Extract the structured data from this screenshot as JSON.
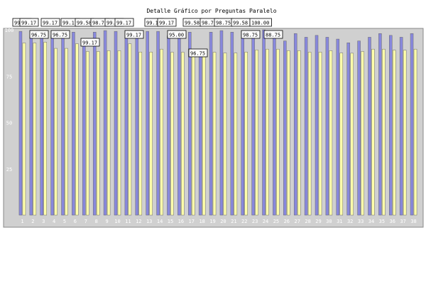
{
  "chart_data": {
    "type": "bar",
    "title": "Detalle Gráfico por Preguntas Paralelo",
    "xlabel": "",
    "ylabel": "",
    "ylim": [
      0,
      100
    ],
    "yticks": [
      25,
      50,
      75,
      100
    ],
    "grid": false,
    "categories": [
      "1",
      "2",
      "3",
      "4",
      "5",
      "6",
      "7",
      "8",
      "9",
      "10",
      "11",
      "12",
      "13",
      "14",
      "15",
      "16",
      "17",
      "18",
      "19",
      "20",
      "21",
      "22",
      "23",
      "24",
      "25",
      "26",
      "27",
      "28",
      "29",
      "30",
      "31",
      "32",
      "33",
      "34",
      "35",
      "36",
      "37",
      "38"
    ],
    "series": [
      {
        "values": [
          99.17,
          96.75,
          99.17,
          96.75,
          99.58,
          98.75,
          95.0,
          98.75,
          99.58,
          99.17,
          99.17,
          99.58,
          99.17,
          99.17,
          96.75,
          99.17,
          98.75,
          88.75,
          98.75,
          99.58,
          98.75,
          99.17,
          99.58,
          100.0,
          96.75,
          94.0,
          98.0,
          96.0,
          97.0,
          96.0,
          95.0,
          93.0,
          94.0,
          96.0,
          98.0,
          97.0,
          96.0,
          98.0
        ]
      },
      {
        "values": [
          92.92,
          92.92,
          93.33,
          90.0,
          90.0,
          92.5,
          88.33,
          88.33,
          88.75,
          88.75,
          92.5,
          88.0,
          88.0,
          89.58,
          87.92,
          87.92,
          89.0,
          87.92,
          87.92,
          87.5,
          87.5,
          88.0,
          89.17,
          89.58,
          89.58,
          88.75,
          88.75,
          88.0,
          88.0,
          88.75,
          87.5,
          87.4,
          88.33,
          89.58,
          89.58,
          89.0,
          89.0,
          89.58
        ]
      }
    ],
    "data_labels": [
      "99.17",
      "99.17",
      "99.17",
      "99.17",
      "99.58",
      "98.75",
      "99.58",
      "99.17",
      "99.17",
      "99.17",
      "99.58",
      "98.75",
      "98.75",
      "99.58",
      "100.00",
      "96.75",
      "96.75",
      "95.00",
      "99.17",
      "98.75",
      "88.75",
      "99.17",
      "96.75"
    ]
  },
  "colors": {
    "plot_bg": "#d0d0d0",
    "series_a": "#8888dd",
    "series_b": "#ffffaa",
    "bar_edge": "#6a6a6a"
  }
}
